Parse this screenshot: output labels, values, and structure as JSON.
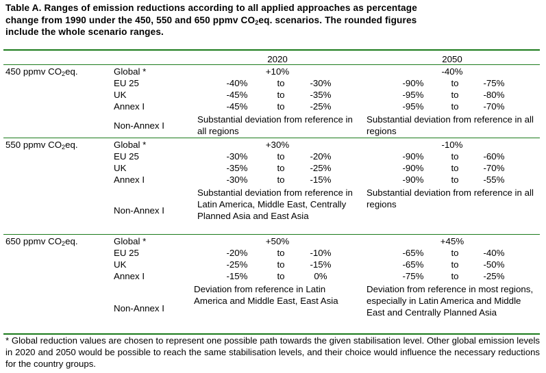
{
  "title_line1": "Table A. Ranges of emission reductions according to all applied approaches as percentage",
  "title_line2": "change from 1990 under the 450, 550 and 650 ppmv CO",
  "title_sub": "2",
  "title_line2_end": "eq. scenarios. The rounded figures",
  "title_line3": "include the whole scenario ranges.",
  "headers": {
    "y2020": "2020",
    "y2050": "2050"
  },
  "scenarios": [
    {
      "label": "450 ppmv CO",
      "sub": "2",
      "label_end": "eq.",
      "global": {
        "label": "Global *",
        "v2020": "+10%",
        "v2050": "-40%"
      },
      "rows": [
        {
          "label": "EU 25",
          "a": "-40%",
          "to1": "to",
          "b": "-30%",
          "c": "-90%",
          "to2": "to",
          "d": "-75%"
        },
        {
          "label": "UK",
          "a": "-45%",
          "to1": "to",
          "b": "-35%",
          "c": "-95%",
          "to2": "to",
          "d": "-80%"
        },
        {
          "label": "Annex I",
          "a": "-45%",
          "to1": "to",
          "b": "-25%",
          "c": "-95%",
          "to2": "to",
          "d": "-70%"
        }
      ],
      "nonannex": {
        "label": "Non-Annex I",
        "t2020": "Substantial deviation from reference in all regions",
        "t2050": "Substantial deviation from reference in all regions"
      }
    },
    {
      "label": "550 ppmv CO",
      "sub": "2",
      "label_end": "eq.",
      "global": {
        "label": "Global *",
        "v2020": "+30%",
        "v2050": "-10%"
      },
      "rows": [
        {
          "label": "EU 25",
          "a": "-30%",
          "to1": "to",
          "b": "-20%",
          "c": "-90%",
          "to2": "to",
          "d": "-60%"
        },
        {
          "label": "UK",
          "a": "-35%",
          "to1": "to",
          "b": "-25%",
          "c": "-90%",
          "to2": "to",
          "d": "-70%"
        },
        {
          "label": "Annex I",
          "a": "-30%",
          "to1": "to",
          "b": "-15%",
          "c": "-90%",
          "to2": "to",
          "d": "-55%"
        }
      ],
      "nonannex": {
        "label": "Non-Annex I",
        "t2020": "Substantial deviation from reference in Latin America, Middle East, Centrally Planned Asia and East Asia",
        "t2050": "Substantial deviation from reference in all regions"
      }
    },
    {
      "label": "650 ppmv CO",
      "sub": "2",
      "label_end": "eq.",
      "global": {
        "label": "Global *",
        "v2020": "+50%",
        "v2050": "+45%"
      },
      "rows": [
        {
          "label": "EU 25",
          "a": "-20%",
          "to1": "to",
          "b": "-10%",
          "c": "-65%",
          "to2": "to",
          "d": "-40%"
        },
        {
          "label": "UK",
          "a": "-25%",
          "to1": "to",
          "b": "-15%",
          "c": "-65%",
          "to2": "to",
          "d": "-50%"
        },
        {
          "label": "Annex I",
          "a": "-15%",
          "to1": "to",
          "b": "0%",
          "c": "-75%",
          "to2": "to",
          "d": "-25%"
        }
      ],
      "nonannex": {
        "label": "Non-Annex I",
        "t2020": "Deviation from reference in Latin America and Middle East, East Asia",
        "t2050": "Deviation from reference in most regions, especially in Latin America and Middle East and Centrally Planned Asia"
      }
    }
  ],
  "footnote": "* Global reduction values are chosen to represent one possible path towards the given stabilisation level. Other global emission levels in 2020 and 2050 would be possible to reach the same stabilisation levels, and their choice would influence the necessary reductions for the country groups."
}
